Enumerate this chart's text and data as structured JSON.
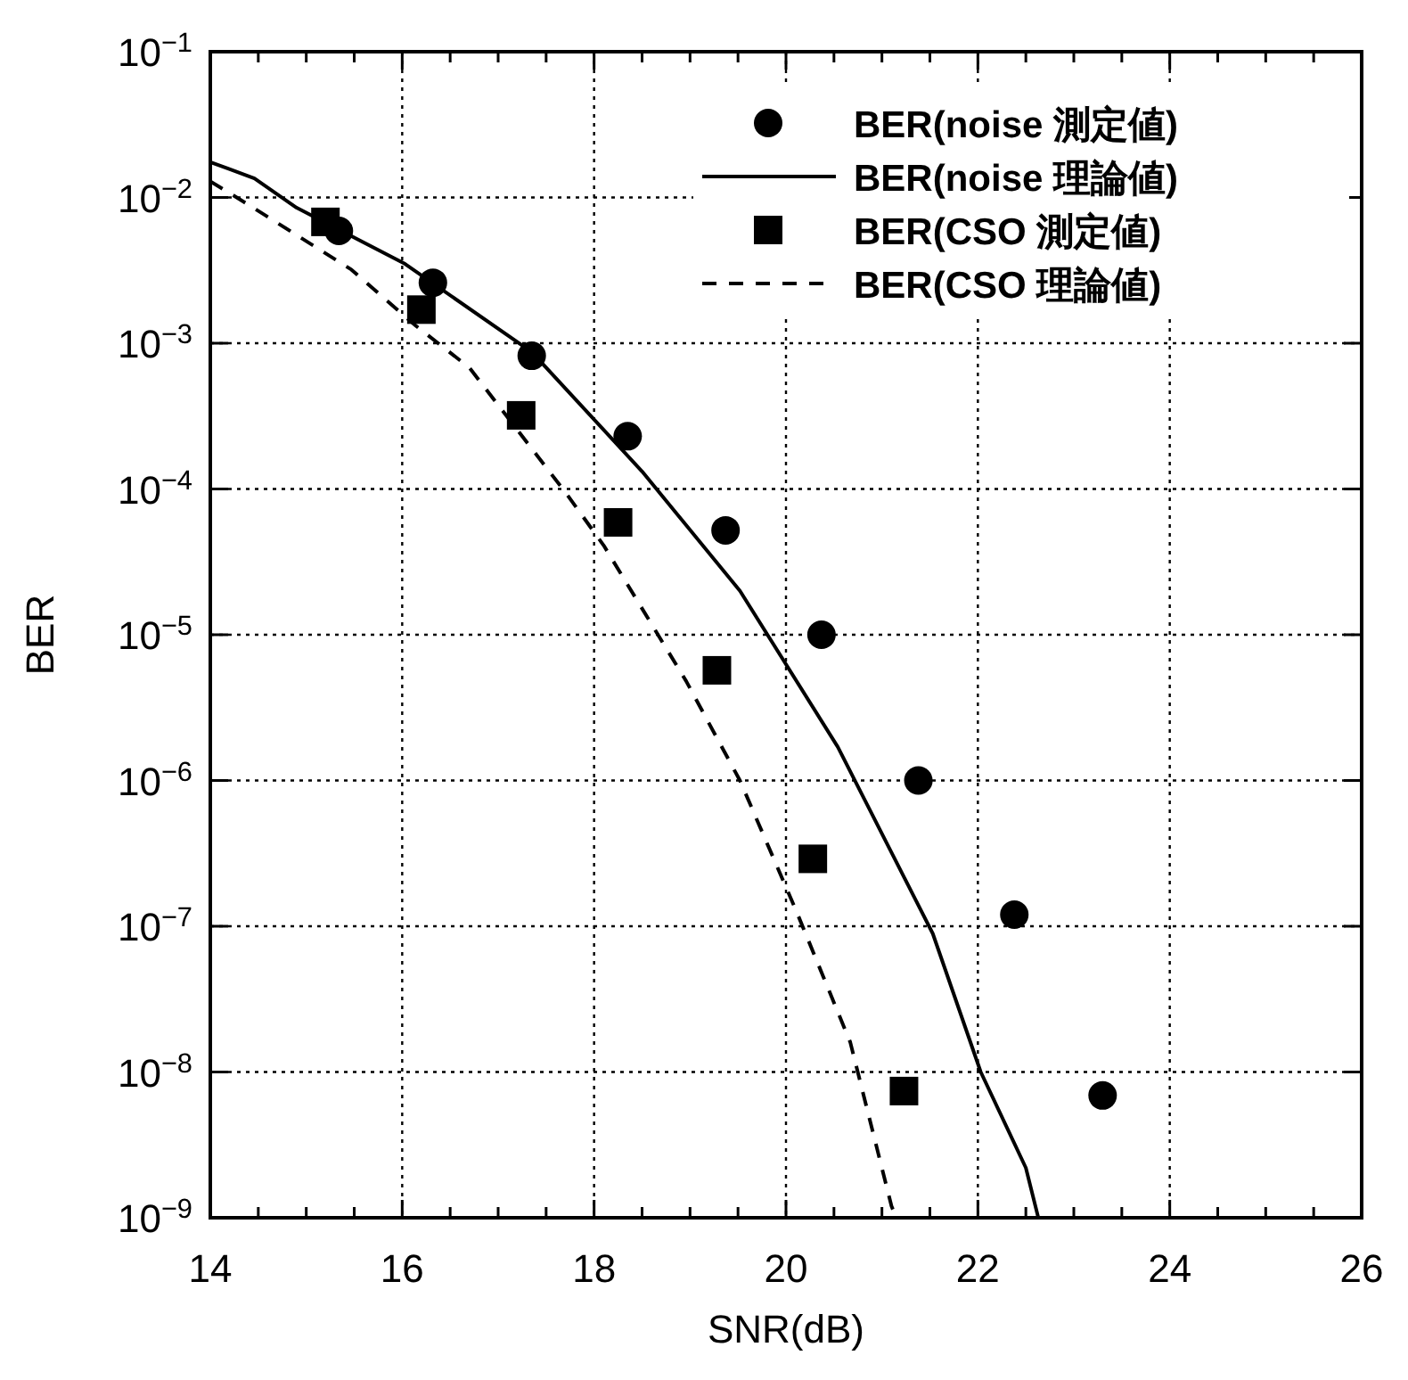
{
  "chart_data": {
    "type": "line",
    "xlabel": "SNR(dB)",
    "ylabel": "BER",
    "log": "y",
    "grid": true,
    "legend": "top right",
    "xlim": [
      14,
      26
    ],
    "ylim": [
      1e-09,
      0.1
    ],
    "xticks": [
      14,
      {
        "value": 14.5,
        "label": null
      },
      {
        "value": 15,
        "label": null
      },
      {
        "value": 15.5,
        "label": null
      },
      16,
      {
        "value": 16.5,
        "label": null
      },
      {
        "value": 17,
        "label": null
      },
      {
        "value": 17.5,
        "label": null
      },
      18,
      {
        "value": 18.5,
        "label": null
      },
      {
        "value": 19,
        "label": null
      },
      {
        "value": 19.5,
        "label": null
      },
      20,
      {
        "value": 20.5,
        "label": null
      },
      {
        "value": 21,
        "label": null
      },
      {
        "value": 21.5,
        "label": null
      },
      22,
      {
        "value": 22.5,
        "label": null
      },
      {
        "value": 23,
        "label": null
      },
      {
        "value": 23.5,
        "label": null
      },
      24,
      {
        "value": 24.5,
        "label": null
      },
      {
        "value": 25,
        "label": null
      },
      {
        "value": 25.5,
        "label": null
      },
      26
    ],
    "yticks": [
      {
        "value": 1e-09,
        "label": "10$^{−9}$"
      },
      {
        "value": 1e-08,
        "label": "10$^{−8}$"
      },
      {
        "value": 1e-07,
        "label": "10$^{−7}$"
      },
      {
        "value": 1e-06,
        "label": "10$^{−6}$"
      },
      {
        "value": 1e-05,
        "label": "10$^{−5}$"
      },
      {
        "value": 0.0001,
        "label": "10$^{−4}$"
      },
      {
        "value": 0.001,
        "label": "10$^{−3}$"
      },
      {
        "value": 0.01,
        "label": "10$^{−2}$"
      },
      {
        "value": 0.1,
        "label": "10$^{−1}$"
      }
    ],
    "series": [
      {
        "name": "BER(noise 測定値)",
        "type": "scatter",
        "marker": "circle",
        "color": "#000000",
        "x": [
          15.34,
          16.32,
          17.35,
          18.35,
          19.37,
          20.37,
          21.38,
          22.38,
          23.3
        ],
        "values": [
          0.0059,
          0.0026,
          0.00082,
          0.00023,
          5.2e-05,
          1e-05,
          1e-06,
          1.2e-07,
          6.9e-09
        ]
      },
      {
        "name": "BER(noise 理論値)",
        "type": "line",
        "marker": "none",
        "line_style": "solid",
        "color": "#000000",
        "x": [
          14,
          14.46,
          14.9,
          16.03,
          17.35,
          18.5,
          19.52,
          20.54,
          21.53,
          22.03,
          22.5,
          22.63
        ],
        "values": [
          0.0175,
          0.0135,
          0.0085,
          0.0035,
          0.00087,
          0.000132,
          2e-05,
          1.7e-06,
          8.9e-08,
          1e-08,
          2.2e-09,
          1e-09
        ]
      },
      {
        "name": "BER(CSO 測定値)",
        "type": "scatter",
        "marker": "square",
        "color": "#000000",
        "x": [
          15.2,
          16.2,
          17.24,
          18.25,
          19.28,
          20.28,
          21.23
        ],
        "values": [
          0.0068,
          0.0017,
          0.00032,
          5.9e-05,
          5.7e-06,
          2.9e-07,
          7.4e-09
        ]
      },
      {
        "name": "BER(CSO 理論値)",
        "type": "line",
        "marker": "none",
        "line_style": "dashed",
        "color": "#000000",
        "x": [
          14,
          14.4,
          15.47,
          16.14,
          16.7,
          17.7,
          18.1,
          18.96,
          19.52,
          20.11,
          20.67,
          21.1,
          21.15
        ],
        "values": [
          0.0129,
          0.0089,
          0.0032,
          0.00132,
          0.00068,
          9.5e-05,
          4.1e-05,
          4.8e-06,
          1e-06,
          1.26e-07,
          1.6e-08,
          1.2e-09,
          1e-09
        ]
      }
    ]
  }
}
